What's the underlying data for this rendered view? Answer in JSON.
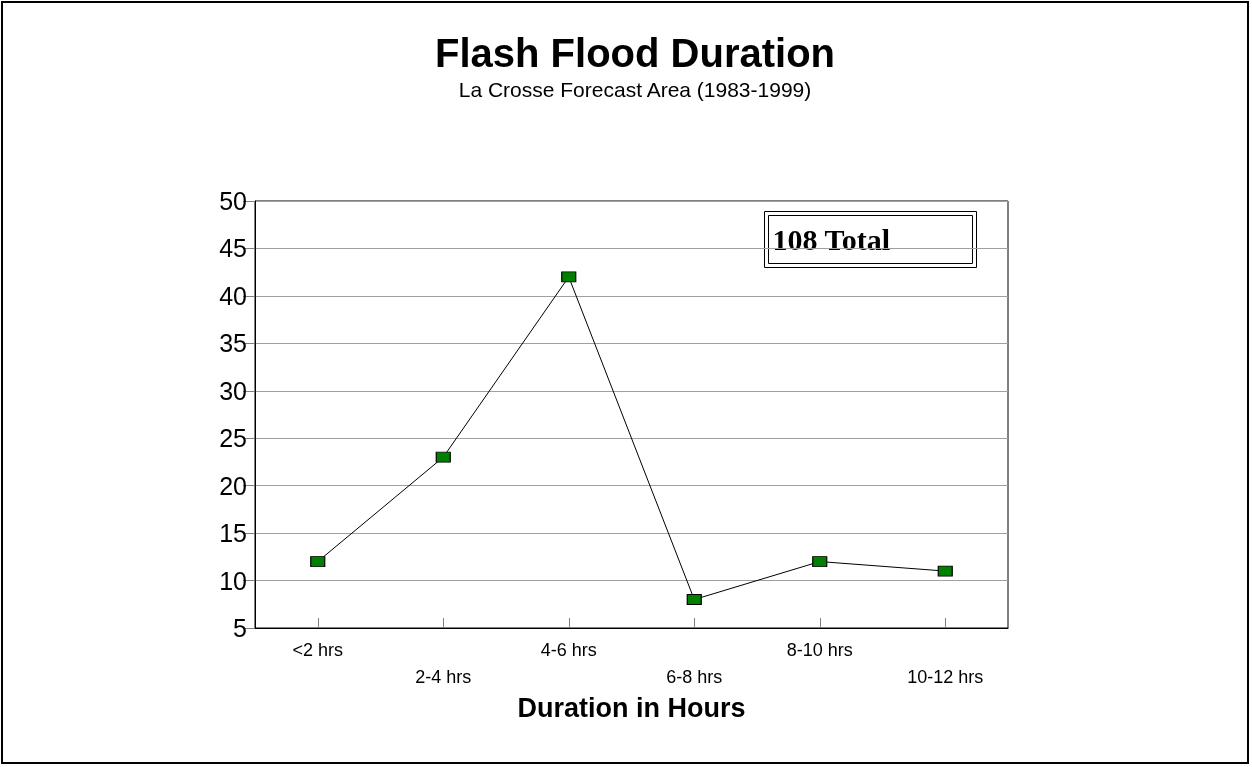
{
  "chart_data": {
    "type": "line",
    "title": "Flash Flood Duration",
    "subtitle": "La Crosse Forecast Area (1983-1999)",
    "xlabel": "Duration in Hours",
    "categories": [
      "<2 hrs",
      "2-4 hrs",
      "4-6 hrs",
      "6-8 hrs",
      "8-10 hrs",
      "10-12 hrs"
    ],
    "series": [
      {
        "color": "#008000",
        "values": [
          12,
          23,
          42,
          8,
          12,
          11
        ]
      }
    ],
    "ylim": [
      5,
      50
    ],
    "yticks": [
      5,
      10,
      15,
      20,
      25,
      30,
      35,
      40,
      45,
      50
    ],
    "grid": "y",
    "marker": "square",
    "line_style": "solid",
    "annotations": [
      "108 Total"
    ]
  }
}
